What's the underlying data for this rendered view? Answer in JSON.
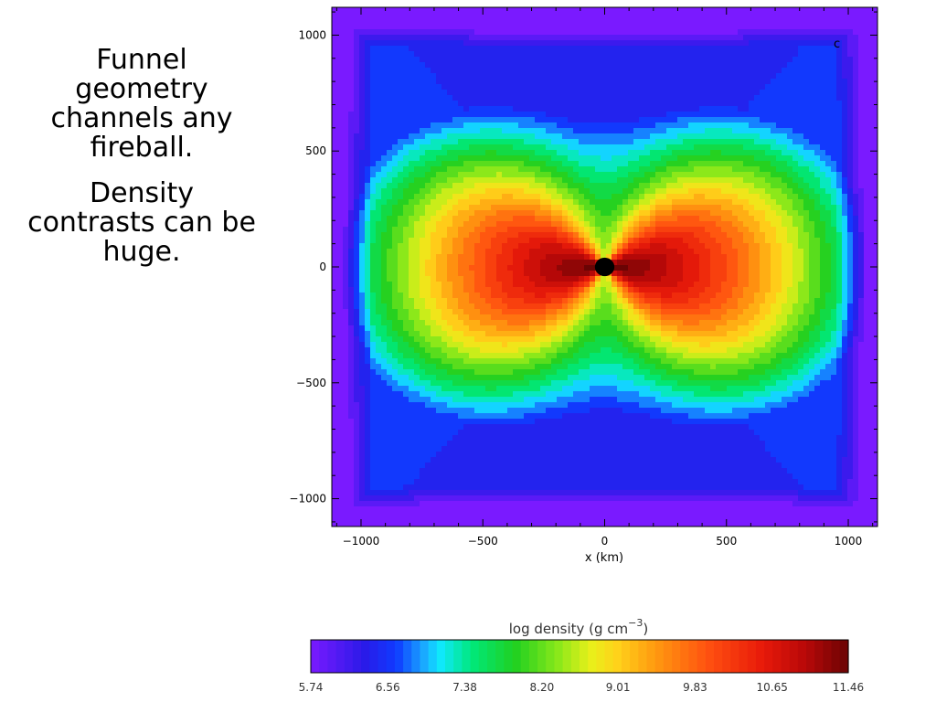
{
  "slide": {
    "paragraphs": [
      "Funnel geometry channels any fireball.",
      "Density contrasts can be huge."
    ]
  },
  "chart_data": [
    {
      "type": "heatmap",
      "title": "",
      "xlabel": "x (km)",
      "ylabel": "",
      "xlim": [
        -1120,
        1120
      ],
      "ylim": [
        -1120,
        1120
      ],
      "x_ticks": [
        -1000,
        -500,
        0,
        500,
        1000
      ],
      "y_ticks": [
        -1000,
        -500,
        0,
        500,
        1000
      ],
      "x_tick_labels": [
        "−1000",
        "−500",
        "0",
        "500",
        "1000"
      ],
      "y_tick_labels": [
        "−1000",
        "−500",
        "0",
        "500",
        "1000"
      ],
      "panel_label": "c",
      "value_range_log_density": [
        5.74,
        11.46
      ],
      "description_values": {
        "equatorial_peak_log_density": 11.46,
        "polar_funnel_log_density": 6.3,
        "outer_edge_log_density": 6.0,
        "central_object_radius_km": 40
      },
      "colors": {
        "central_object": "#000000",
        "panel_label": "#d02020"
      }
    },
    {
      "type": "colorbar",
      "title": "log density (g cm⁻³)",
      "title_main": "log density (g cm",
      "title_sup": "−3",
      "title_close": ")",
      "range": [
        5.74,
        11.46
      ],
      "tick_labels": [
        "5.74",
        "6.56",
        "7.38",
        "8.20",
        "9.01",
        "9.83",
        "10.65",
        "11.46"
      ],
      "tick_values": [
        5.74,
        6.56,
        7.38,
        8.2,
        9.01,
        9.83,
        10.65,
        11.46
      ]
    }
  ]
}
